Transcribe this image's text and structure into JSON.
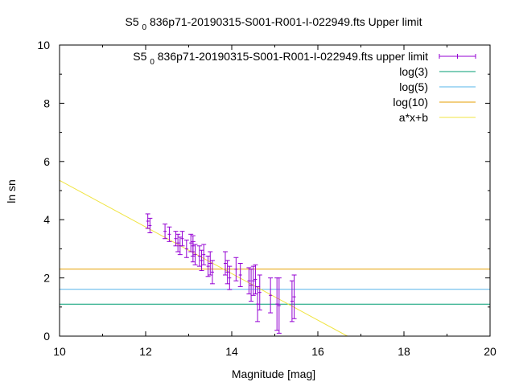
{
  "chart_data": {
    "type": "scatter",
    "title_prefix": "S5",
    "title_subscript": "0",
    "title_rest": "836p71-20190315-S001-R001-I-022949.fts Upper limit",
    "xlabel": "Magnitude [mag]",
    "ylabel": "ln sn",
    "xlim": [
      10,
      20
    ],
    "ylim": [
      0,
      10
    ],
    "x_ticks": [
      "10",
      "12",
      "14",
      "16",
      "18",
      "20"
    ],
    "y_ticks": [
      "0",
      "2",
      "4",
      "6",
      "8",
      "10"
    ],
    "grid": false,
    "legend_position": "top-right",
    "colors": {
      "data": "#9400d3",
      "log3": "#009e73",
      "log5": "#56b4e9",
      "log10": "#e69f00",
      "fit": "#f0e442"
    },
    "series": [
      {
        "name_prefix": "S5",
        "name_subscript": "0",
        "name_rest": "836p71-20190315-S001-R001-I-022949.fts upper limit",
        "kind": "errorbars",
        "points": [
          {
            "x": 12.05,
            "y": 3.95,
            "err": 0.25
          },
          {
            "x": 12.1,
            "y": 3.8,
            "err": 0.25
          },
          {
            "x": 12.45,
            "y": 3.6,
            "err": 0.25
          },
          {
            "x": 12.55,
            "y": 3.5,
            "err": 0.25
          },
          {
            "x": 12.7,
            "y": 3.35,
            "err": 0.25
          },
          {
            "x": 12.75,
            "y": 3.2,
            "err": 0.3
          },
          {
            "x": 12.8,
            "y": 3.1,
            "err": 0.3
          },
          {
            "x": 12.85,
            "y": 3.35,
            "err": 0.25
          },
          {
            "x": 12.95,
            "y": 3.0,
            "err": 0.3
          },
          {
            "x": 13.05,
            "y": 3.2,
            "err": 0.3
          },
          {
            "x": 13.1,
            "y": 3.1,
            "err": 0.35
          },
          {
            "x": 13.1,
            "y": 2.9,
            "err": 0.35
          },
          {
            "x": 13.15,
            "y": 2.8,
            "err": 0.35
          },
          {
            "x": 13.25,
            "y": 2.75,
            "err": 0.35
          },
          {
            "x": 13.3,
            "y": 2.6,
            "err": 0.35
          },
          {
            "x": 13.35,
            "y": 2.8,
            "err": 0.35
          },
          {
            "x": 13.45,
            "y": 2.4,
            "err": 0.35
          },
          {
            "x": 13.5,
            "y": 2.5,
            "err": 0.4
          },
          {
            "x": 13.55,
            "y": 2.2,
            "err": 0.4
          },
          {
            "x": 13.85,
            "y": 2.5,
            "err": 0.4
          },
          {
            "x": 13.9,
            "y": 2.2,
            "err": 0.4
          },
          {
            "x": 13.95,
            "y": 2.0,
            "err": 0.4
          },
          {
            "x": 14.1,
            "y": 2.3,
            "err": 0.4
          },
          {
            "x": 14.2,
            "y": 2.1,
            "err": 0.4
          },
          {
            "x": 14.4,
            "y": 1.9,
            "err": 0.45
          },
          {
            "x": 14.45,
            "y": 1.75,
            "err": 0.55
          },
          {
            "x": 14.5,
            "y": 1.9,
            "err": 0.5
          },
          {
            "x": 14.55,
            "y": 1.95,
            "err": 0.5
          },
          {
            "x": 14.6,
            "y": 1.1,
            "err": 0.6
          },
          {
            "x": 14.65,
            "y": 1.5,
            "err": 0.6
          },
          {
            "x": 14.9,
            "y": 1.4,
            "err": 0.6
          },
          {
            "x": 15.05,
            "y": 1.1,
            "err": 0.9
          },
          {
            "x": 15.1,
            "y": 1.05,
            "err": 0.95
          },
          {
            "x": 15.4,
            "y": 1.2,
            "err": 0.7
          },
          {
            "x": 15.45,
            "y": 1.35,
            "err": 0.75
          }
        ]
      },
      {
        "name": "log(3)",
        "kind": "hline",
        "y": 1.0986
      },
      {
        "name": "log(5)",
        "kind": "hline",
        "y": 1.6094
      },
      {
        "name": "log(10)",
        "kind": "hline",
        "y": 2.3026
      },
      {
        "name": "a*x+b",
        "kind": "fit",
        "a": -0.8,
        "b": 13.35
      }
    ]
  }
}
